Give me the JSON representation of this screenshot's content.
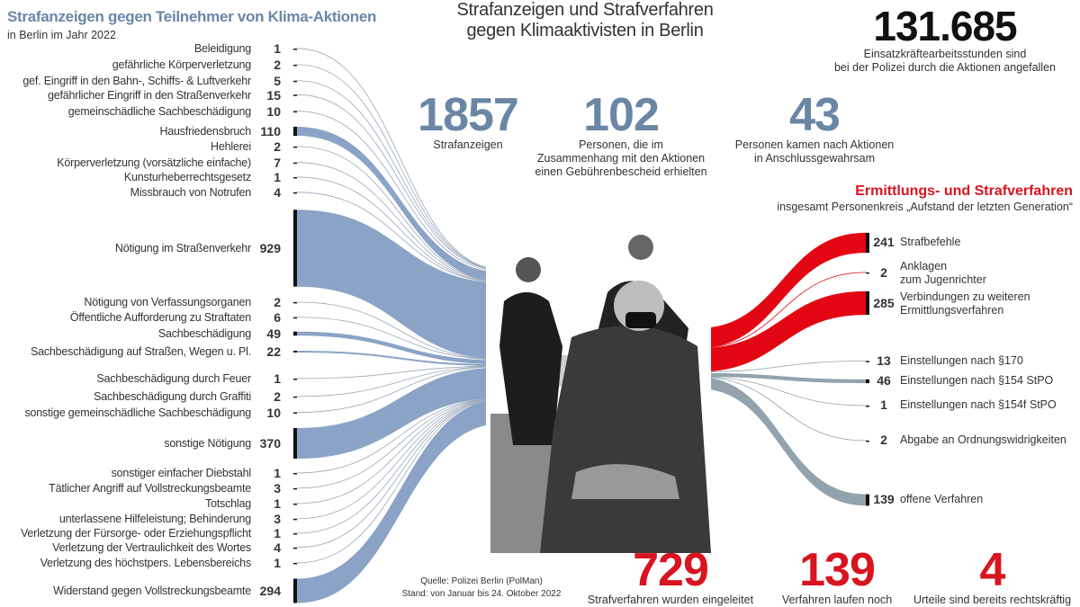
{
  "left_panel": {
    "title": "Strafanzeigen gegen Teilnehmer von Klima-Aktionen",
    "subtitle": "in Berlin im Jahr 2022"
  },
  "main_title": "Strafanzeigen und Strafverfahren\ngegen Klimaaktivisten in Berlin",
  "police_hours": {
    "value": "131.685",
    "caption": "Einsatzkräftearbeitsstunden sind\nbei der Polizei durch die Aktionen angefallen"
  },
  "top_stats": [
    {
      "value": "1857",
      "caption": "Strafanzeigen"
    },
    {
      "value": "102",
      "caption": "Personen, die im\nZusammenhang mit den Aktionen\neinen Gebührenbescheid erhielten"
    },
    {
      "value": "43",
      "caption": "Personen kamen nach Aktionen\nin Anschlussgewahrsam"
    }
  ],
  "right_panel": {
    "title": "Ermittlungs- und Strafverfahren",
    "subtitle": "insgesamt Personenkreis „Aufstand der letzten Generation“"
  },
  "bottom_stats": [
    {
      "value": "729",
      "caption": "Strafverfahren wurden eingeleitet"
    },
    {
      "value": "139",
      "caption": "Verfahren laufen noch"
    },
    {
      "value": "4",
      "caption": "Urteile sind bereits rechtskräftig"
    }
  ],
  "source": "Quelle: Polizei Berlin (PolMan)\nStand: von Januar bis 24. Oktober 2022",
  "colors": {
    "left_flow": "#8aa3c6",
    "red_flow": "#e30613",
    "gray_flow": "#93a3ad",
    "accent_blue": "#6a86a4",
    "accent_red": "#d7141f"
  },
  "photo": {
    "description_icon": "activist-photo"
  },
  "chart_data": [
    {
      "type": "sankey",
      "title": "Strafanzeigen gegen Teilnehmer von Klima-Aktionen",
      "subtitle": "in Berlin im Jahr 2022",
      "categories": [
        "Beleidigung",
        "gefährliche Körperverletzung",
        "gef. Eingriff in den Bahn-, Schiffs- & Luftverkehr",
        "gefährlicher Eingriff in den Straßenverkehr",
        "gemeinschädliche Sachbeschädigung",
        "Hausfriedensbruch",
        "Hehlerei",
        "Körperverletzung (vorsätzliche einfache)",
        "Kunsturheberrechtsgesetz",
        "Missbrauch von Notrufen",
        "Nötigung im Straßenverkehr",
        "Nötigung von Verfassungsorganen",
        "Öffentliche Aufforderung zu Straftaten",
        "Sachbeschädigung",
        "Sachbeschädigung auf Straßen, Wegen u. Pl.",
        "Sachbeschädigung durch Feuer",
        "Sachbeschädigung durch Graffiti",
        "sonstige gemeinschädliche Sachbeschädigung",
        "sonstige Nötigung",
        "sonstiger einfacher Diebstahl",
        "Tätlicher Angriff auf Vollstreckungsbeamte",
        "Totschlag",
        "unterlassene Hilfeleistung; Behinderung",
        "Verletzung der Fürsorge- oder Erziehungspflicht",
        "Verletzung der Vertraulichkeit des Wortes",
        "Verletzung des höchstpers. Lebensbereichs",
        "Widerstand gegen Vollstreckungsbeamte"
      ],
      "values": [
        1,
        2,
        5,
        15,
        10,
        110,
        2,
        7,
        1,
        4,
        929,
        2,
        6,
        49,
        22,
        1,
        2,
        10,
        370,
        1,
        3,
        1,
        3,
        1,
        4,
        1,
        294
      ]
    },
    {
      "type": "sankey",
      "title": "Ermittlungs- und Strafverfahren",
      "subtitle": "insgesamt Personenkreis „Aufstand der letzten Generation“",
      "categories": [
        "Strafbefehle",
        "Anklagen\nzum Jugenrichter",
        "Verbindungen zu weiteren\nErmittlungsverfahren",
        "Einstellungen nach §170",
        "Einstellungen nach §154 StPO",
        "Einstellungen nach §154f StPO",
        "Abgabe an Ordnungswidrigkeiten",
        "offene Verfahren"
      ],
      "values": [
        241,
        2,
        285,
        13,
        46,
        1,
        2,
        139
      ],
      "flow_colors": [
        "red",
        "red",
        "red",
        "gray",
        "gray",
        "gray",
        "gray",
        "gray"
      ]
    }
  ]
}
